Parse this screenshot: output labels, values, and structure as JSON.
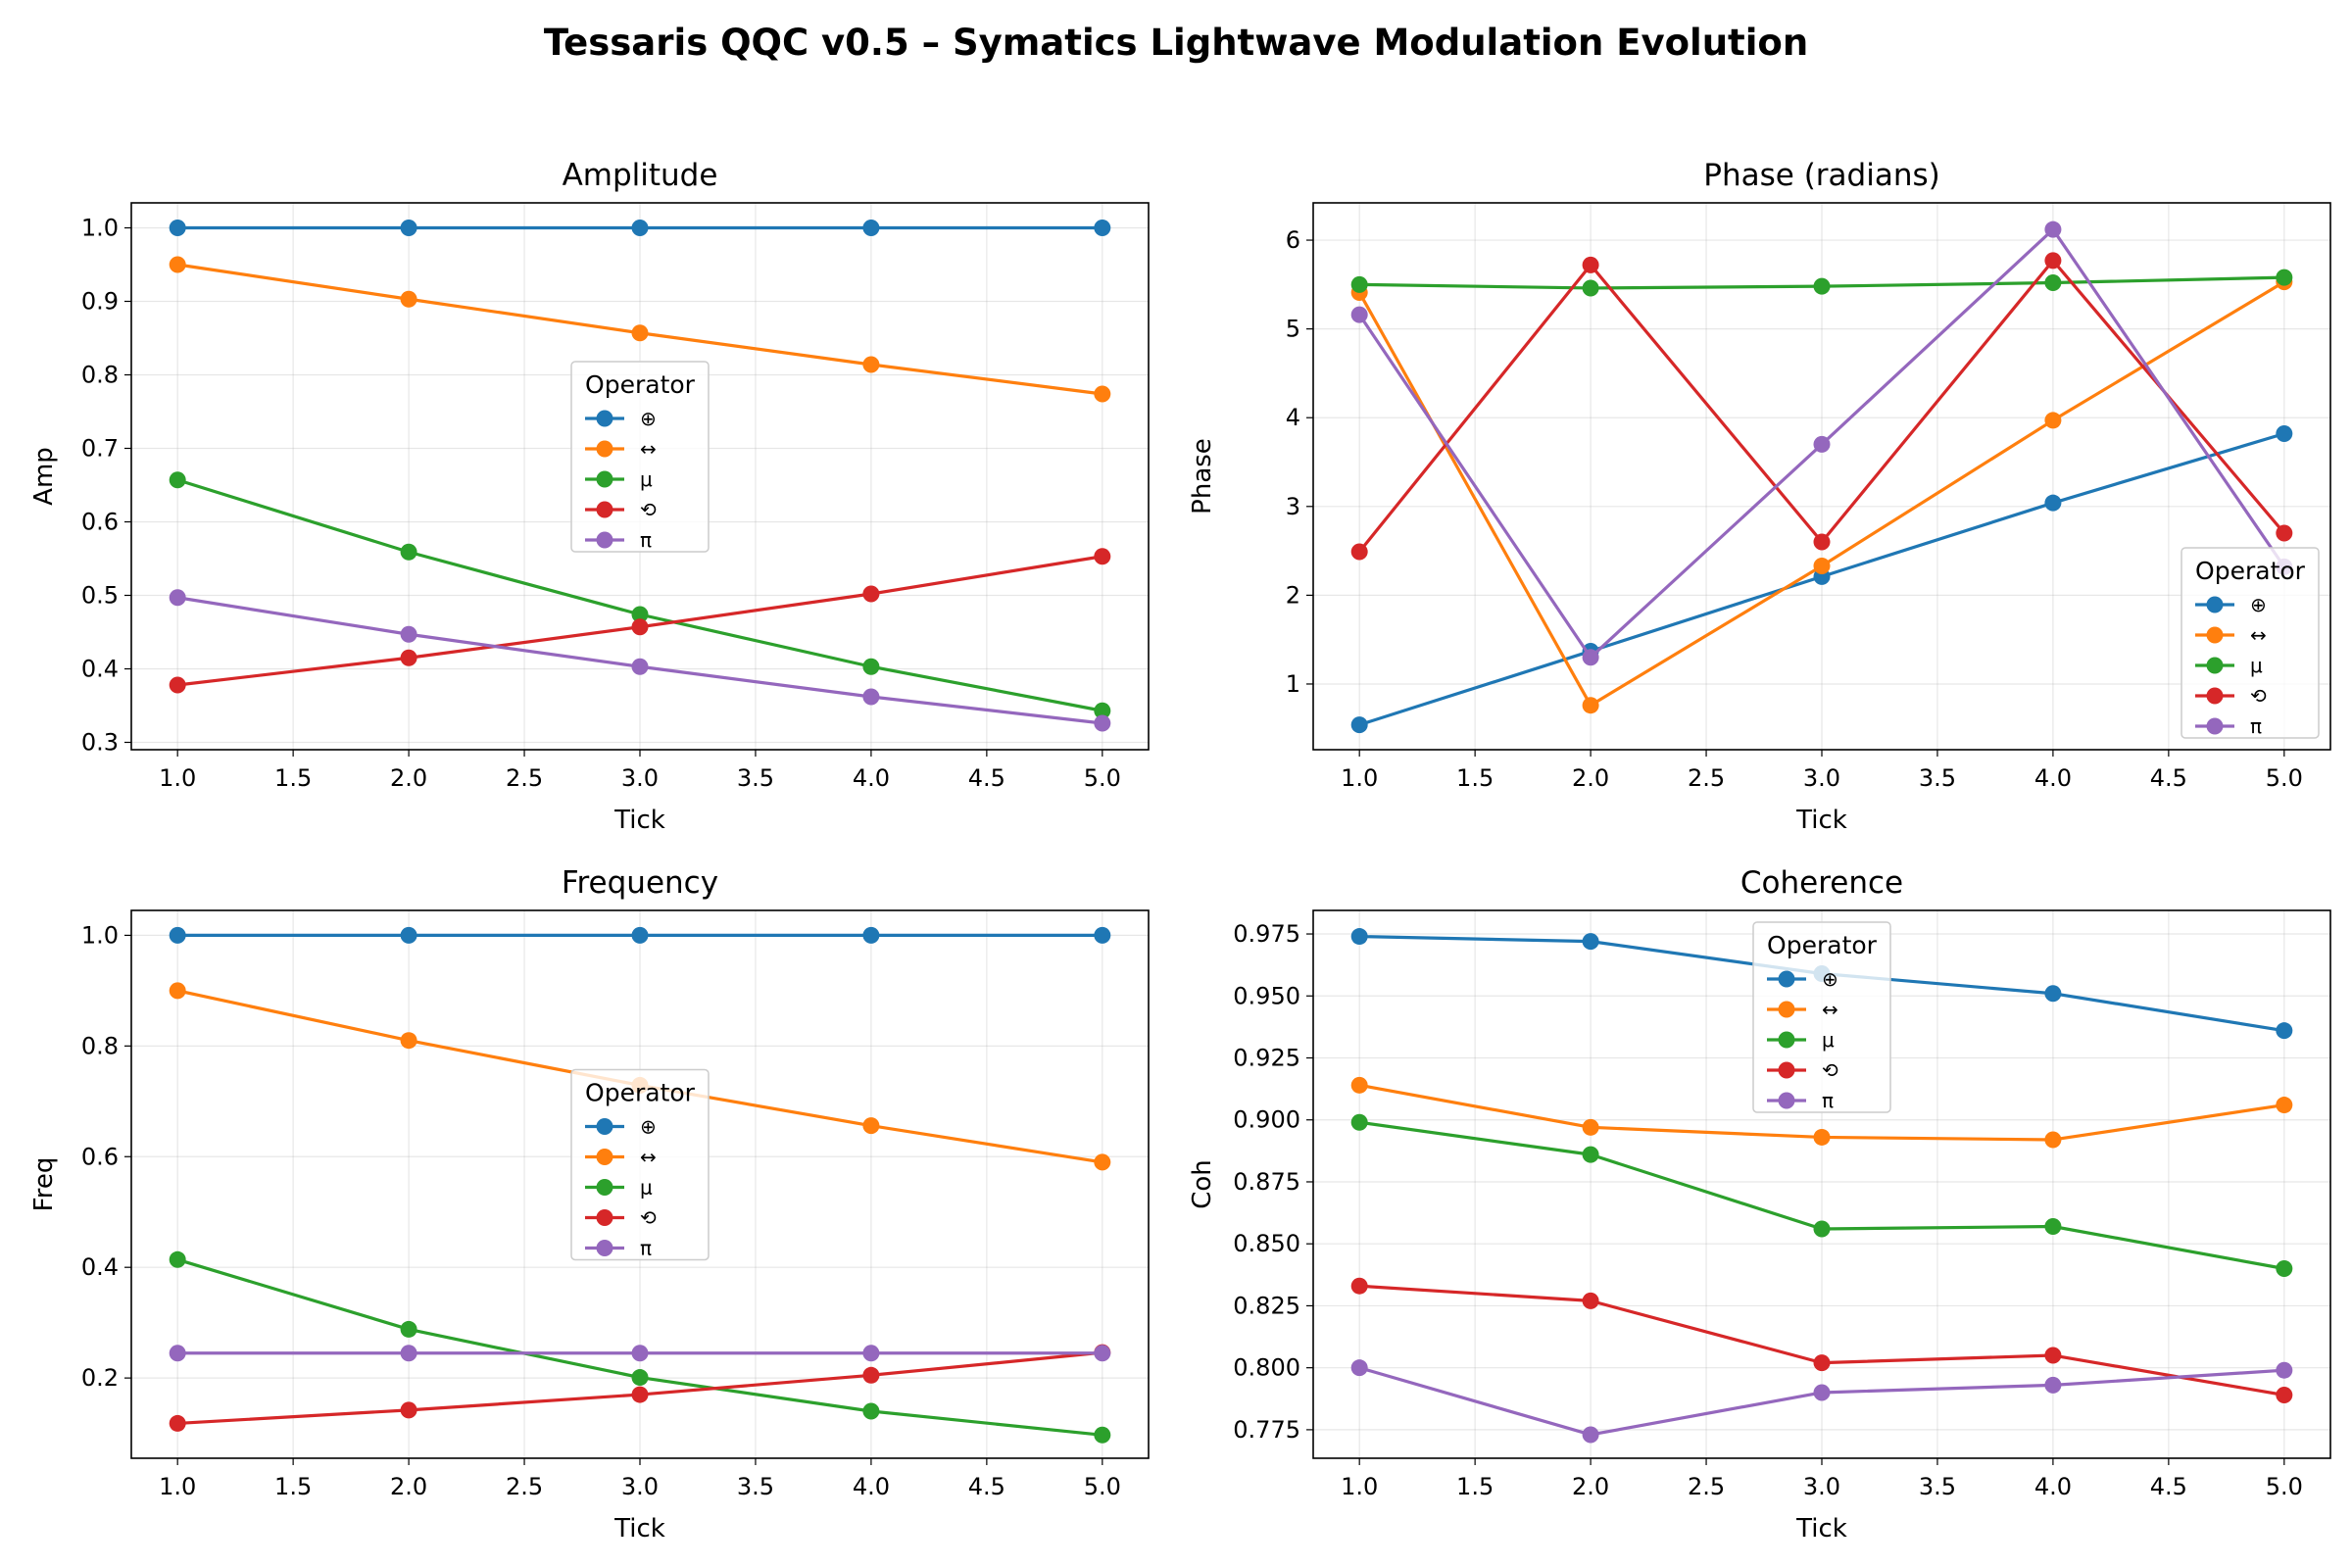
{
  "figure": {
    "title": "Tessaris QQC v0.5 – Symatics Lightwave Modulation Evolution"
  },
  "colors": {
    "⊕": "#1f77b4",
    "↔": "#ff7f0e",
    "μ": "#2ca02c",
    "⟲": "#d62728",
    "π": "#9467bd"
  },
  "chart_data": [
    {
      "type": "line",
      "title": "Amplitude",
      "xlabel": "Tick",
      "ylabel": "Amp",
      "xlim": [
        0.8,
        5.2
      ],
      "ylim": [
        0.29,
        1.034
      ],
      "xticks": [
        "1.0",
        "1.5",
        "2.0",
        "2.5",
        "3.0",
        "3.5",
        "4.0",
        "4.5",
        "5.0"
      ],
      "yticks": [
        "0.3",
        "0.4",
        "0.5",
        "0.6",
        "0.7",
        "0.8",
        "0.9",
        "1.0"
      ],
      "grid": true,
      "legend": {
        "title": "Operator",
        "placement": "center"
      },
      "x": [
        1,
        2,
        3,
        4,
        5
      ],
      "series": [
        {
          "name": "⊕",
          "values": [
            1.0,
            1.0,
            1.0,
            1.0,
            1.0
          ]
        },
        {
          "name": "↔",
          "values": [
            0.95,
            0.903,
            0.857,
            0.814,
            0.774
          ]
        },
        {
          "name": "μ",
          "values": [
            0.657,
            0.559,
            0.474,
            0.403,
            0.343
          ]
        },
        {
          "name": "⟲",
          "values": [
            0.378,
            0.415,
            0.457,
            0.502,
            0.553
          ]
        },
        {
          "name": "π",
          "values": [
            0.497,
            0.447,
            0.403,
            0.362,
            0.326
          ]
        }
      ]
    },
    {
      "type": "line",
      "title": "Phase (radians)",
      "xlabel": "Tick",
      "ylabel": "Phase",
      "xlim": [
        0.8,
        5.2
      ],
      "ylim": [
        0.26,
        6.42
      ],
      "xticks": [
        "1.0",
        "1.5",
        "2.0",
        "2.5",
        "3.0",
        "3.5",
        "4.0",
        "4.5",
        "5.0"
      ],
      "yticks": [
        "1",
        "2",
        "3",
        "4",
        "5",
        "6"
      ],
      "grid": true,
      "legend": {
        "title": "Operator",
        "placement": "lower right"
      },
      "x": [
        1,
        2,
        3,
        4,
        5
      ],
      "series": [
        {
          "name": "⊕",
          "values": [
            0.54,
            1.37,
            2.21,
            3.04,
            3.82
          ]
        },
        {
          "name": "↔",
          "values": [
            5.41,
            0.76,
            2.33,
            3.97,
            5.53
          ]
        },
        {
          "name": "μ",
          "values": [
            5.5,
            5.46,
            5.48,
            5.52,
            5.58
          ]
        },
        {
          "name": "⟲",
          "values": [
            2.49,
            5.72,
            2.6,
            5.77,
            2.7
          ]
        },
        {
          "name": "π",
          "values": [
            5.16,
            1.3,
            3.7,
            6.12,
            2.32
          ]
        }
      ]
    },
    {
      "type": "line",
      "title": "Frequency",
      "xlabel": "Tick",
      "ylabel": "Freq",
      "xlim": [
        0.8,
        5.2
      ],
      "ylim": [
        0.055,
        1.045
      ],
      "xticks": [
        "1.0",
        "1.5",
        "2.0",
        "2.5",
        "3.0",
        "3.5",
        "4.0",
        "4.5",
        "5.0"
      ],
      "yticks": [
        "0.2",
        "0.4",
        "0.6",
        "0.8",
        "1.0"
      ],
      "grid": true,
      "legend": {
        "title": "Operator",
        "placement": "center"
      },
      "x": [
        1,
        2,
        3,
        4,
        5
      ],
      "series": [
        {
          "name": "⊕",
          "values": [
            1.0,
            1.0,
            1.0,
            1.0,
            1.0
          ]
        },
        {
          "name": "↔",
          "values": [
            0.9,
            0.81,
            0.729,
            0.656,
            0.59
          ]
        },
        {
          "name": "μ",
          "values": [
            0.414,
            0.288,
            0.201,
            0.14,
            0.097
          ]
        },
        {
          "name": "⟲",
          "values": [
            0.118,
            0.142,
            0.17,
            0.205,
            0.246
          ]
        },
        {
          "name": "π",
          "values": [
            0.245,
            0.245,
            0.245,
            0.245,
            0.245
          ]
        }
      ]
    },
    {
      "type": "line",
      "title": "Coherence",
      "xlabel": "Tick",
      "ylabel": "Coh",
      "xlim": [
        0.8,
        5.2
      ],
      "ylim": [
        0.7635,
        0.9845
      ],
      "xticks": [
        "1.0",
        "1.5",
        "2.0",
        "2.5",
        "3.0",
        "3.5",
        "4.0",
        "4.5",
        "5.0"
      ],
      "yticks": [
        "0.775",
        "0.800",
        "0.825",
        "0.850",
        "0.875",
        "0.900",
        "0.925",
        "0.950",
        "0.975"
      ],
      "grid": true,
      "legend": {
        "title": "Operator",
        "placement": "upper center"
      },
      "x": [
        1,
        2,
        3,
        4,
        5
      ],
      "series": [
        {
          "name": "⊕",
          "values": [
            0.974,
            0.972,
            0.959,
            0.951,
            0.936
          ]
        },
        {
          "name": "↔",
          "values": [
            0.914,
            0.897,
            0.893,
            0.892,
            0.906
          ]
        },
        {
          "name": "μ",
          "values": [
            0.899,
            0.886,
            0.856,
            0.857,
            0.84
          ]
        },
        {
          "name": "⟲",
          "values": [
            0.833,
            0.827,
            0.802,
            0.805,
            0.789
          ]
        },
        {
          "name": "π",
          "values": [
            0.8,
            0.773,
            0.79,
            0.793,
            0.799
          ]
        }
      ]
    }
  ]
}
